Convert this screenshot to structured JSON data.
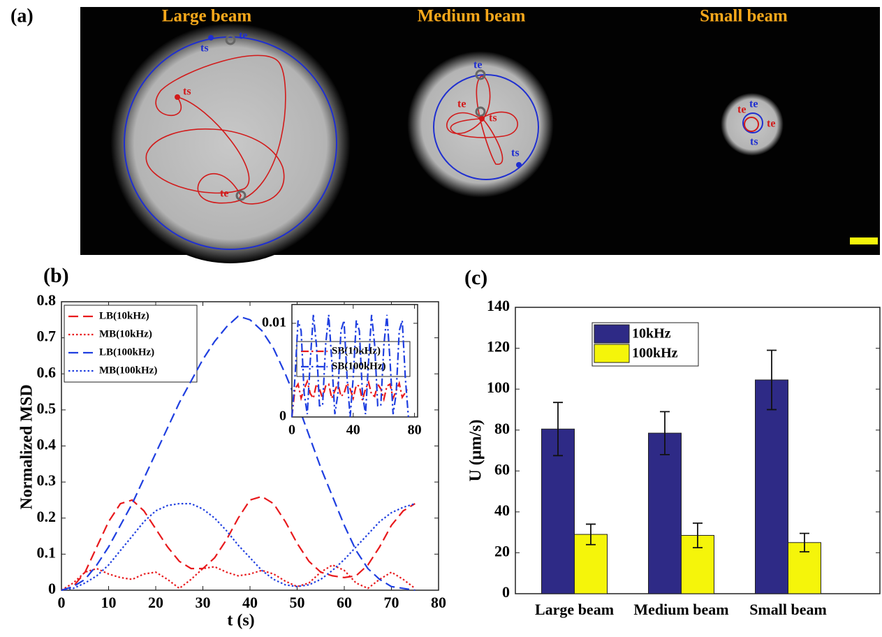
{
  "image": {
    "label": "(a)",
    "titles": [
      "Large beam",
      "Medium beam",
      "Small beam"
    ],
    "markers": [
      "ts",
      "te",
      "ts",
      "te",
      "te",
      "te",
      "ts",
      "ts",
      "te",
      "te",
      "ts",
      "te"
    ]
  },
  "chart_data": [
    {
      "type": "line",
      "panel_label": "(b)",
      "x_label": "t (s)",
      "y_label": "Normalized MSD",
      "xlim": [
        0,
        80
      ],
      "xticks": [
        0,
        10,
        20,
        30,
        40,
        50,
        60,
        70,
        80
      ],
      "ylim": [
        0,
        0.8
      ],
      "yticks": [
        0,
        0.1,
        0.2,
        0.3,
        0.4,
        0.5,
        0.6,
        0.7,
        0.8
      ],
      "legend": "upper left",
      "x": [
        0,
        2.5,
        5,
        7.5,
        10,
        12.5,
        15,
        17.5,
        20,
        22.5,
        25,
        27.5,
        30,
        32.5,
        35,
        37.5,
        40,
        42.5,
        45,
        47.5,
        50,
        52.5,
        55,
        57.5,
        60,
        62.5,
        65,
        67.5,
        70,
        72.5,
        75
      ],
      "series": [
        {
          "name": "LB(10kHz)",
          "color": "#e8191c",
          "style": "dashed",
          "values": [
            0,
            0.01,
            0.05,
            0.12,
            0.19,
            0.24,
            0.25,
            0.22,
            0.17,
            0.12,
            0.08,
            0.06,
            0.06,
            0.09,
            0.14,
            0.2,
            0.25,
            0.26,
            0.24,
            0.19,
            0.13,
            0.08,
            0.05,
            0.04,
            0.035,
            0.04,
            0.07,
            0.12,
            0.18,
            0.22,
            0.24
          ]
        },
        {
          "name": "MB(10kHz)",
          "color": "#e8191c",
          "style": "dotted",
          "values": [
            0,
            0.02,
            0.05,
            0.06,
            0.045,
            0.035,
            0.03,
            0.045,
            0.05,
            0.03,
            0.005,
            0.03,
            0.06,
            0.065,
            0.05,
            0.04,
            0.045,
            0.055,
            0.045,
            0.025,
            0.01,
            0.02,
            0.05,
            0.07,
            0.055,
            0.02,
            0.005,
            0.03,
            0.05,
            0.03,
            0.005
          ]
        },
        {
          "name": "LB(100kHz)",
          "color": "#1f3fe0",
          "style": "dashed",
          "values": [
            0,
            0.01,
            0.03,
            0.07,
            0.12,
            0.18,
            0.24,
            0.31,
            0.38,
            0.45,
            0.52,
            0.58,
            0.64,
            0.69,
            0.73,
            0.76,
            0.75,
            0.72,
            0.67,
            0.6,
            0.52,
            0.43,
            0.34,
            0.26,
            0.18,
            0.11,
            0.06,
            0.03,
            0.01,
            0.005,
            0
          ]
        },
        {
          "name": "MB(100kHz)",
          "color": "#1f3fe0",
          "style": "dotted",
          "values": [
            0,
            0.005,
            0.02,
            0.04,
            0.07,
            0.11,
            0.15,
            0.19,
            0.22,
            0.235,
            0.24,
            0.24,
            0.225,
            0.2,
            0.165,
            0.125,
            0.09,
            0.055,
            0.03,
            0.015,
            0.01,
            0.015,
            0.03,
            0.055,
            0.085,
            0.12,
            0.155,
            0.19,
            0.215,
            0.23,
            0.24
          ]
        }
      ]
    },
    {
      "type": "line",
      "xlim": [
        0,
        82
      ],
      "xticks": [
        0,
        40,
        80
      ],
      "ylim": [
        0,
        0.012
      ],
      "yticks": [
        0,
        0.01
      ],
      "legend": "center right",
      "x": [
        0,
        2,
        4,
        6,
        8,
        10,
        12,
        14,
        16,
        18,
        20,
        22,
        24,
        26,
        28,
        30,
        32,
        34,
        36,
        38,
        40,
        42,
        44,
        46,
        48,
        50,
        52,
        54,
        56,
        58,
        60,
        62,
        64,
        66,
        68,
        70,
        72,
        74,
        76
      ],
      "series": [
        {
          "name": "SB(10kHz)",
          "color": "#e8191c",
          "style": "dashdot",
          "values": [
            0,
            0.003,
            0.0035,
            0.002,
            0.003,
            0.0038,
            0.0025,
            0.002,
            0.0035,
            0.003,
            0.002,
            0.0033,
            0.0035,
            0.002,
            0.0028,
            0.0036,
            0.0022,
            0.0025,
            0.0036,
            0.003,
            0.002,
            0.0034,
            0.0033,
            0.0018,
            0.003,
            0.0037,
            0.0024,
            0.0022,
            0.0035,
            0.003,
            0.0019,
            0.0033,
            0.0035,
            0.002,
            0.0028,
            0.0036,
            0.0021,
            0.0026,
            0.0032
          ]
        },
        {
          "name": "SB(100kHz)",
          "color": "#1f3fe0",
          "style": "dashdot",
          "values": [
            0,
            0.0042,
            0.0103,
            0.0092,
            0.0025,
            0.0003,
            0.006,
            0.0109,
            0.0077,
            0.0012,
            0.0012,
            0.0077,
            0.0109,
            0.006,
            0.0003,
            0.0025,
            0.0092,
            0.0103,
            0.0042,
            0,
            0.0042,
            0.0103,
            0.0092,
            0.0025,
            0.0003,
            0.006,
            0.0109,
            0.0077,
            0.0012,
            0.0012,
            0.0077,
            0.0109,
            0.006,
            0.0003,
            0.0025,
            0.0092,
            0.0103,
            0.0042,
            0
          ]
        }
      ]
    },
    {
      "type": "bar",
      "panel_label": "(c)",
      "y_label": "U (μm/s)",
      "categories": [
        "Large beam",
        "Medium beam",
        "Small beam"
      ],
      "ylim": [
        0,
        140
      ],
      "yticks": [
        0,
        20,
        40,
        60,
        80,
        100,
        120,
        140
      ],
      "legend": "upper left",
      "series": [
        {
          "name": "10kHz",
          "color": "#2e2a86",
          "values": [
            80.5,
            78.5,
            104.5
          ],
          "errors": [
            13,
            10.5,
            14.5
          ]
        },
        {
          "name": "100kHz",
          "color": "#f5f50a",
          "values": [
            29,
            28.5,
            25
          ],
          "errors": [
            5,
            6,
            4.5
          ]
        }
      ]
    }
  ]
}
